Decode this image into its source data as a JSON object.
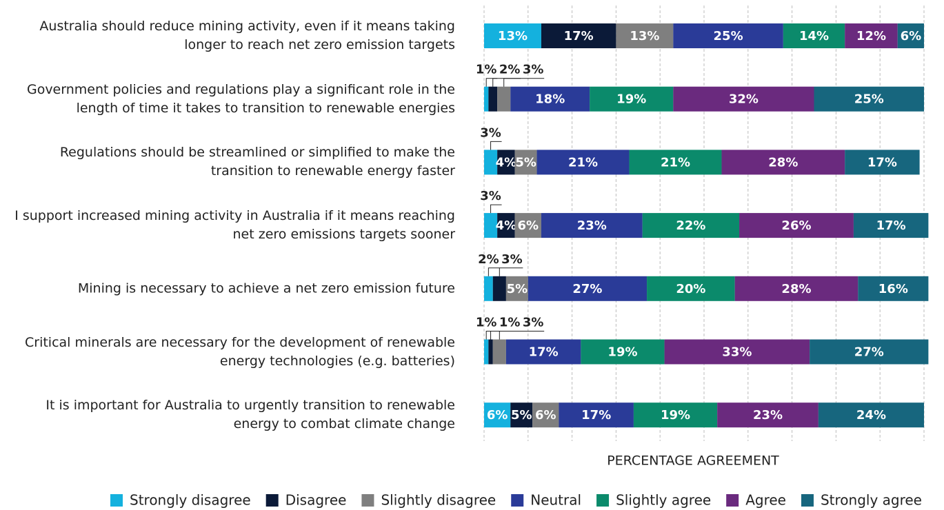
{
  "chart_data": {
    "type": "stacked-bar-horizontal",
    "x_label": "PERCENTAGE AGREEMENT",
    "categories": [
      "Australia should reduce mining activity, even if it means taking longer to reach net zero emission targets",
      "Government policies and regulations play a significant role in the length of time it takes to transition to renewable energies",
      "Regulations should be streamlined or simplified to make the transition to renewable energy faster",
      "I support increased mining activity in Australia if it means reaching net zero emissions targets sooner",
      "Mining is necessary to achieve a net zero emission future",
      "Critical minerals are necessary for the development of renewable energy technologies (e.g. batteries)",
      "It is important for Australia to urgently transition to renewable energy to combat climate change"
    ],
    "series": [
      {
        "name": "Strongly disagree",
        "color": "#14b1de",
        "values": [
          13,
          1,
          3,
          3,
          2,
          1,
          6
        ],
        "value_labels": [
          "13%",
          "1%",
          "3%",
          "3%",
          "2%",
          "1%",
          "6%"
        ]
      },
      {
        "name": "Disagree",
        "color": "#0b1a38",
        "values": [
          17,
          2,
          4,
          4,
          3,
          1,
          5
        ],
        "value_labels": [
          "17%",
          "2%",
          "4%",
          "4%",
          "3%",
          "1%",
          "5%"
        ]
      },
      {
        "name": "Slightly disagree",
        "color": "#7f7f7f",
        "values": [
          13,
          3,
          5,
          6,
          5,
          3,
          6
        ],
        "value_labels": [
          "13%",
          "3%",
          "5%",
          "6%",
          "5%",
          "3%",
          "6%"
        ]
      },
      {
        "name": "Neutral",
        "color": "#2a3b98",
        "values": [
          25,
          18,
          21,
          23,
          27,
          17,
          17
        ],
        "value_labels": [
          "25%",
          "18%",
          "21%",
          "23%",
          "27%",
          "17%",
          "17%"
        ]
      },
      {
        "name": "Slightly agree",
        "color": "#0b8a6b",
        "values": [
          14,
          19,
          21,
          22,
          20,
          19,
          19
        ],
        "value_labels": [
          "14%",
          "19%",
          "21%",
          "22%",
          "20%",
          "19%",
          "19%"
        ]
      },
      {
        "name": "Agree",
        "color": "#6a2a7e",
        "values": [
          12,
          32,
          28,
          26,
          28,
          33,
          23
        ],
        "value_labels": [
          "12%",
          "32%",
          "28%",
          "26%",
          "28%",
          "33%",
          "23%"
        ]
      },
      {
        "name": "Strongly agree",
        "color": "#17667e",
        "values": [
          6,
          25,
          17,
          17,
          16,
          27,
          24
        ],
        "value_labels": [
          "6%",
          "25%",
          "17%",
          "17%",
          "16%",
          "27%",
          "24%"
        ]
      }
    ],
    "xlim": [
      0,
      100
    ],
    "xticks": [
      0,
      10,
      20,
      30,
      40,
      50,
      60,
      70,
      80,
      90,
      100
    ],
    "grid": true,
    "legend": "bottom"
  }
}
